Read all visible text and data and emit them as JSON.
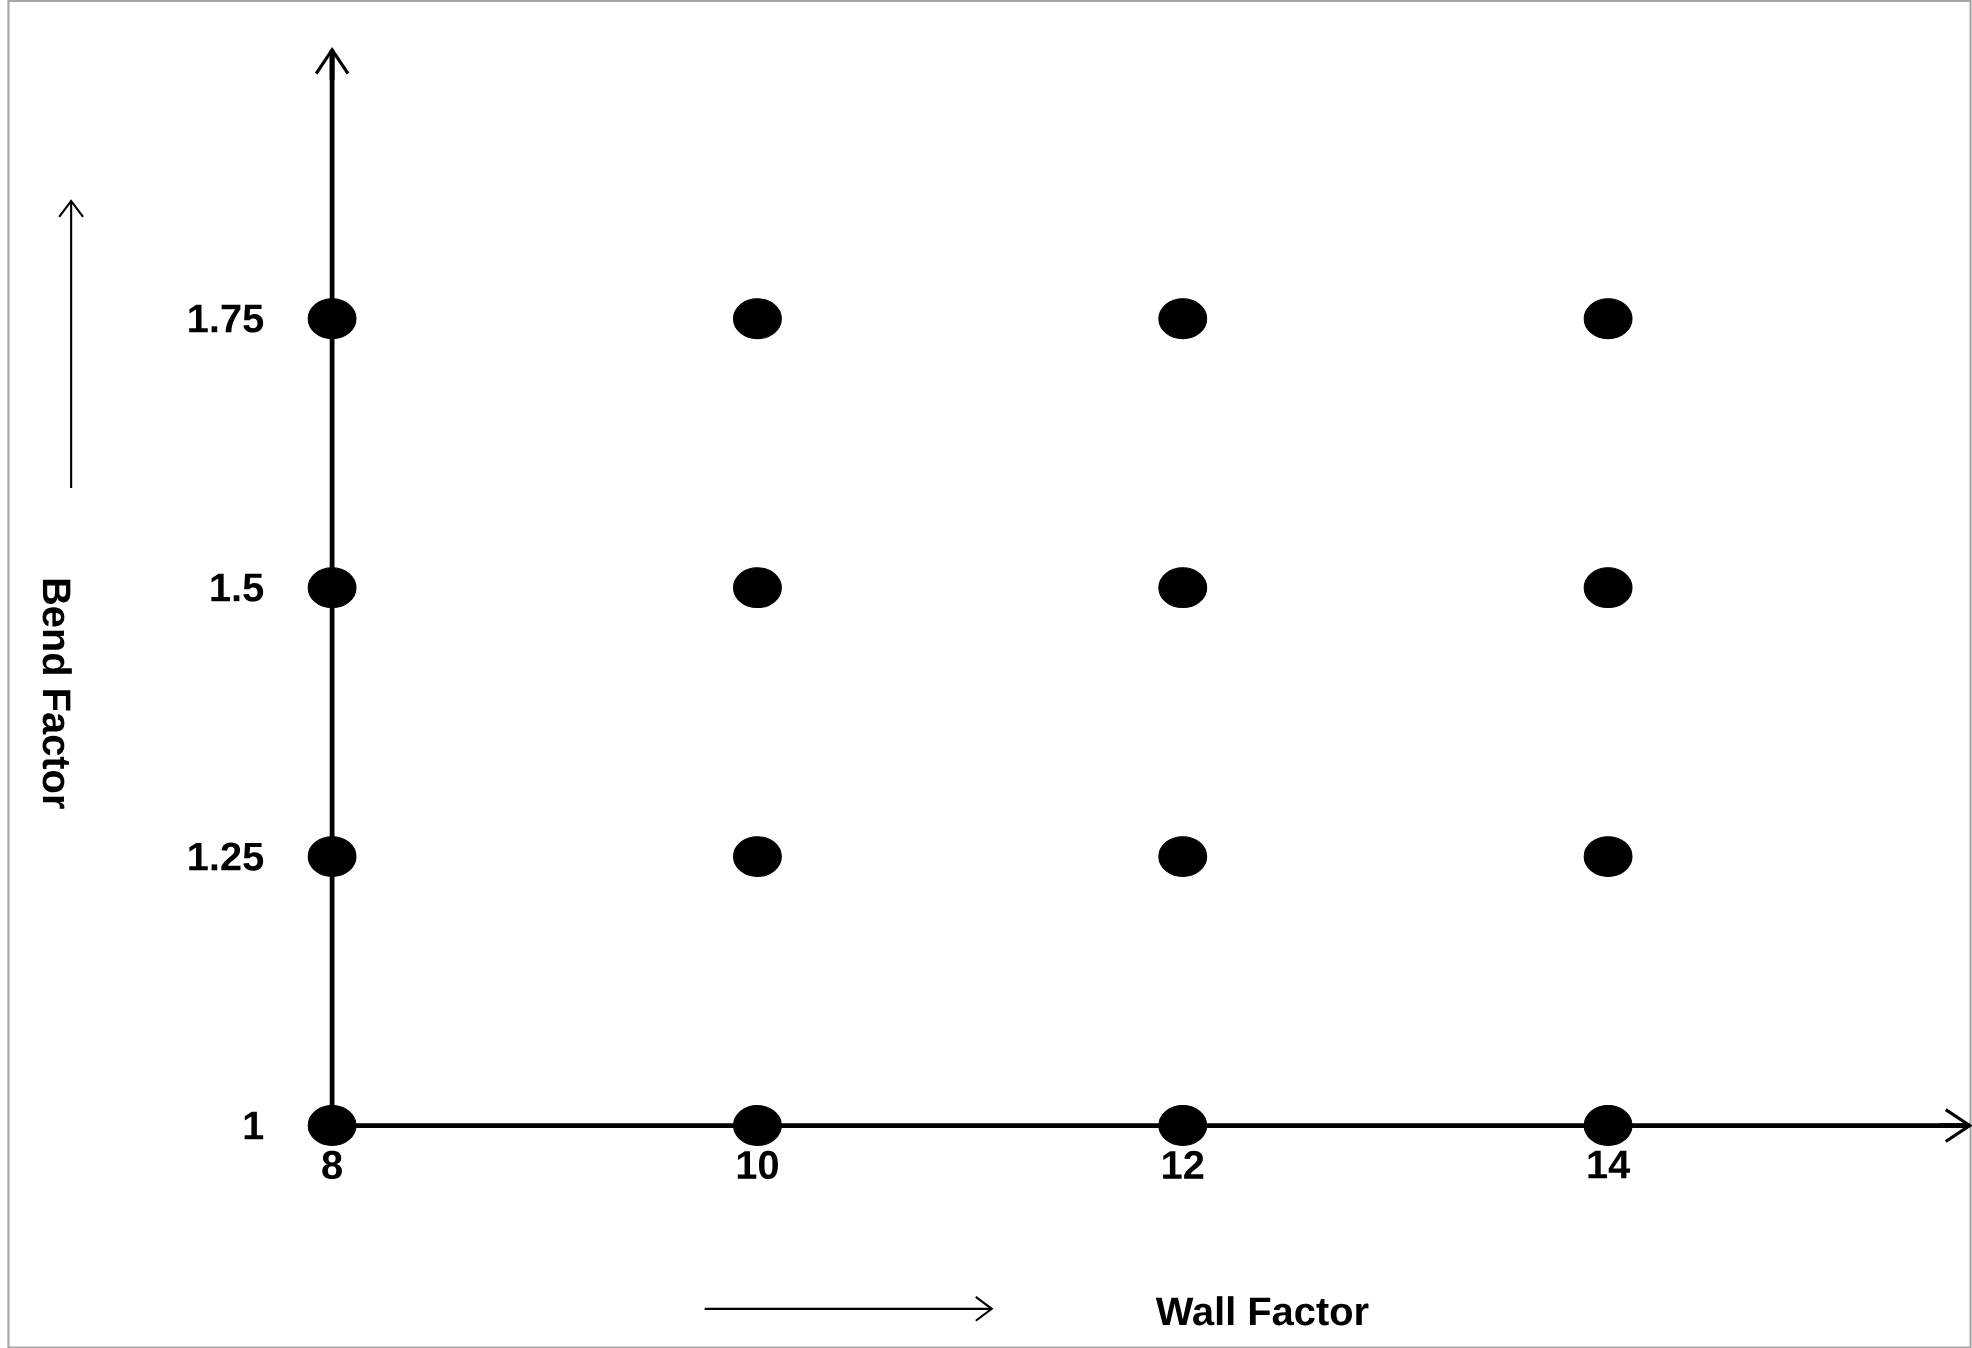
{
  "chart_data": {
    "type": "scatter",
    "xlabel": "Wall Factor",
    "ylabel": "Bend Factor",
    "x": [
      8,
      10,
      12,
      14,
      8,
      10,
      12,
      14,
      8,
      10,
      12,
      14,
      8,
      10,
      12,
      14
    ],
    "values": [
      1,
      1,
      1,
      1,
      1.25,
      1.25,
      1.25,
      1.25,
      1.5,
      1.5,
      1.5,
      1.5,
      1.75,
      1.75,
      1.75,
      1.75
    ],
    "color": "#000000",
    "marker": "circle",
    "xlim": [
      8,
      15.7
    ],
    "ylim": [
      1,
      2.0
    ],
    "xticks": [
      8,
      10,
      12,
      14
    ],
    "yticks": [
      1,
      1.25,
      1.5,
      1.75
    ]
  }
}
